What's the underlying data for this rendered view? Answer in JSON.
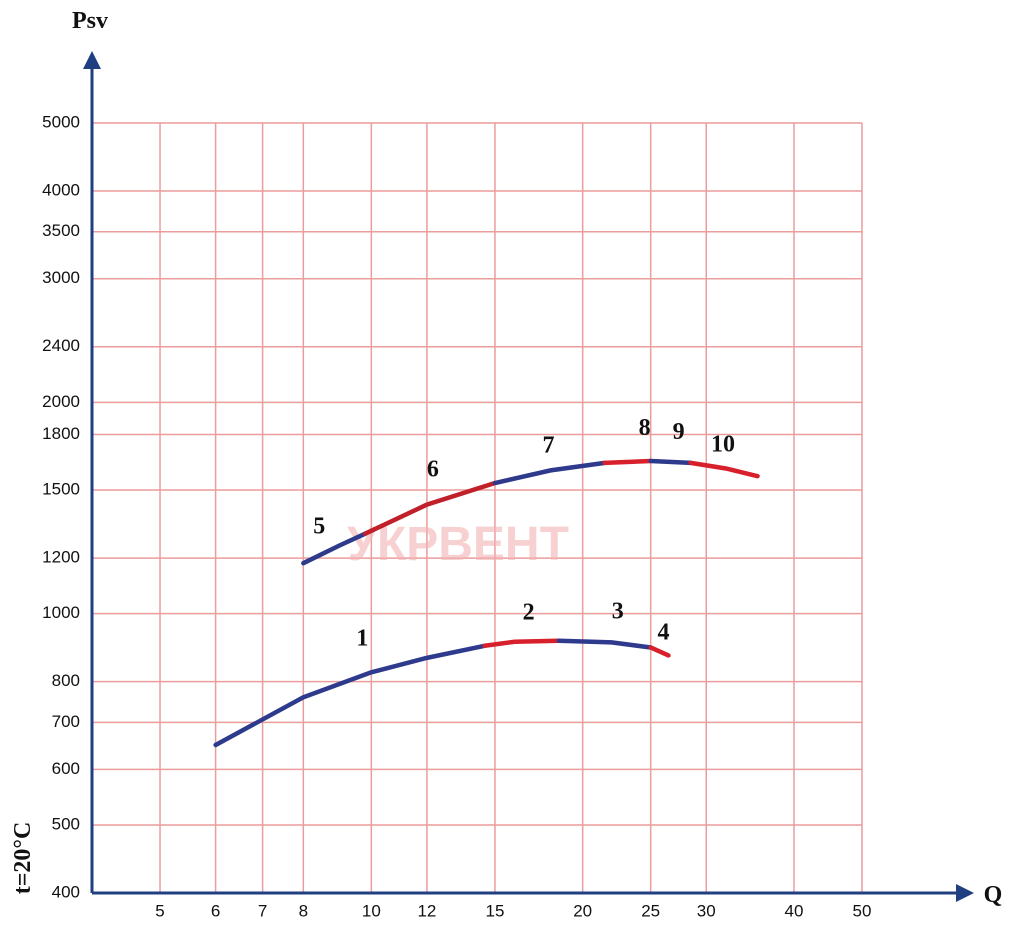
{
  "chart_data": {
    "type": "line",
    "x_label": "Q",
    "y_label": "Psv",
    "annotation": "t=20°C",
    "watermark": "УКРВЕНТ",
    "log_x": true,
    "log_y": true,
    "grid": true,
    "xlim": [
      4,
      50
    ],
    "ylim": [
      400,
      5000
    ],
    "xticks": [
      5,
      6,
      7,
      8,
      10,
      12,
      15,
      20,
      25,
      30,
      40,
      50
    ],
    "yticks": [
      400,
      500,
      600,
      700,
      800,
      1000,
      1200,
      1500,
      1800,
      2000,
      2400,
      3000,
      3500,
      4000,
      5000
    ],
    "series": [
      {
        "name": "1",
        "color": "#2e3a8c",
        "x": [
          6,
          8,
          10,
          12,
          14.5
        ],
        "values": [
          650,
          760,
          825,
          865,
          900
        ]
      },
      {
        "name": "2",
        "color": "#d8202c",
        "x": [
          14.5,
          16,
          18.5
        ],
        "values": [
          900,
          912,
          915
        ]
      },
      {
        "name": "3",
        "color": "#2e3a8c",
        "x": [
          18.5,
          22,
          25
        ],
        "values": [
          915,
          910,
          895
        ]
      },
      {
        "name": "4",
        "color": "#d8202c",
        "x": [
          25,
          26.5
        ],
        "values": [
          895,
          872
        ]
      },
      {
        "name": "5",
        "color": "#2e3a8c",
        "x": [
          8,
          9,
          9.8
        ],
        "values": [
          1180,
          1250,
          1300
        ]
      },
      {
        "name": "6",
        "color": "#c0202a",
        "x": [
          9.8,
          12,
          15
        ],
        "values": [
          1300,
          1430,
          1535
        ]
      },
      {
        "name": "7",
        "color": "#2e3a8c",
        "x": [
          15,
          18,
          21.5
        ],
        "values": [
          1535,
          1600,
          1640
        ]
      },
      {
        "name": "8",
        "color": "#d8202c",
        "x": [
          21.5,
          25
        ],
        "values": [
          1640,
          1650
        ]
      },
      {
        "name": "9",
        "color": "#2e3a8c",
        "x": [
          25,
          28.5
        ],
        "values": [
          1650,
          1640
        ]
      },
      {
        "name": "10",
        "color": "#d8202c",
        "x": [
          28.5,
          32,
          35.5
        ],
        "values": [
          1640,
          1610,
          1570
        ]
      }
    ]
  }
}
